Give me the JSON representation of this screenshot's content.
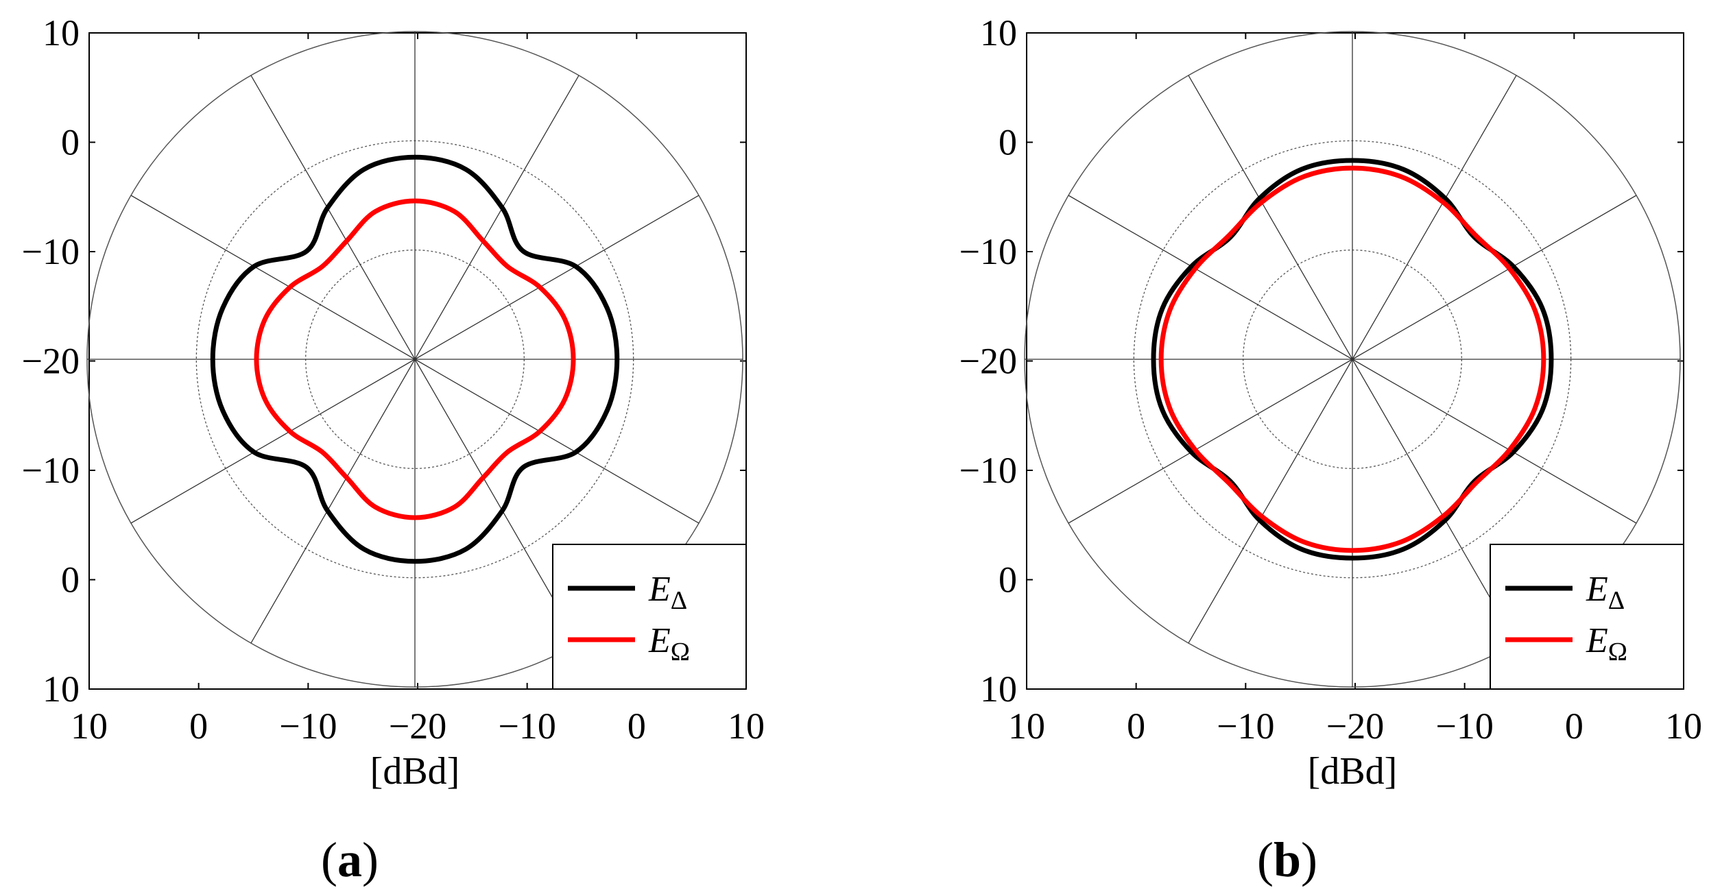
{
  "chart_data": [
    {
      "type": "polar",
      "panel_label": "a",
      "xlabel": "[dBd]",
      "ylabel": "",
      "r_range_dB": [
        -20,
        10
      ],
      "ring_values_dB": [
        -10,
        0,
        10
      ],
      "spoke_interval_deg": 30,
      "y_tick_labels": [
        "10",
        "0",
        "−10",
        "−20",
        "−10",
        "0",
        "10"
      ],
      "x_tick_labels": [
        "10",
        "0",
        "−10",
        "−20",
        "−10",
        "0",
        "10"
      ],
      "legend_position": "bottom-right",
      "angles_deg": [
        0,
        15,
        30,
        45,
        60,
        75,
        90,
        105,
        120,
        135,
        150,
        165,
        180,
        195,
        210,
        225,
        240,
        255,
        270,
        285,
        300,
        315,
        330,
        345
      ],
      "series": [
        {
          "name": "E",
          "subscript": "Δ",
          "color": "#000000",
          "values": [
            -1.5,
            -1.8,
            -3.0,
            -6.0,
            -4.0,
            -2.0,
            -1.5,
            -2.0,
            -4.0,
            -6.0,
            -3.0,
            -1.8,
            -1.5,
            -1.8,
            -3.0,
            -6.0,
            -4.0,
            -2.0,
            -1.5,
            -2.0,
            -4.0,
            -6.0,
            -3.0,
            -1.8
          ]
        },
        {
          "name": "E",
          "subscript": "Ω",
          "color": "#ff0000",
          "values": [
            -5.5,
            -5.8,
            -6.8,
            -8.0,
            -7.5,
            -6.0,
            -5.5,
            -6.0,
            -7.5,
            -8.0,
            -6.8,
            -5.8,
            -5.5,
            -5.8,
            -6.8,
            -8.0,
            -7.5,
            -6.0,
            -5.5,
            -6.0,
            -7.5,
            -8.0,
            -6.8,
            -5.8
          ]
        }
      ]
    },
    {
      "type": "polar",
      "panel_label": "b",
      "xlabel": "[dBd]",
      "ylabel": "",
      "r_range_dB": [
        -20,
        10
      ],
      "ring_values_dB": [
        -10,
        0,
        10
      ],
      "spoke_interval_deg": 30,
      "y_tick_labels": [
        "10",
        "0",
        "−10",
        "−20",
        "−10",
        "0",
        "10"
      ],
      "x_tick_labels": [
        "10",
        "0",
        "−10",
        "−20",
        "−10",
        "0",
        "10"
      ],
      "legend_position": "bottom-right",
      "angles_deg": [
        0,
        15,
        30,
        45,
        60,
        75,
        90,
        105,
        120,
        135,
        150,
        165,
        180,
        195,
        210,
        225,
        240,
        255,
        270,
        285,
        300,
        315,
        330,
        345
      ],
      "series": [
        {
          "name": "E",
          "subscript": "Δ",
          "color": "#000000",
          "values": [
            -1.8,
            -2.0,
            -3.0,
            -4.2,
            -3.0,
            -2.0,
            -1.8,
            -2.0,
            -3.0,
            -4.2,
            -3.0,
            -2.0,
            -1.8,
            -2.0,
            -3.0,
            -4.2,
            -3.0,
            -2.0,
            -1.8,
            -2.0,
            -3.0,
            -4.2,
            -3.0,
            -2.0
          ]
        },
        {
          "name": "E",
          "subscript": "Ω",
          "color": "#ff0000",
          "values": [
            -2.5,
            -2.7,
            -3.4,
            -4.0,
            -3.4,
            -2.7,
            -2.5,
            -2.7,
            -3.4,
            -4.0,
            -3.4,
            -2.7,
            -2.5,
            -2.7,
            -3.4,
            -4.0,
            -3.4,
            -2.7,
            -2.5,
            -2.7,
            -3.4,
            -4.0,
            -3.4,
            -2.7
          ]
        }
      ]
    }
  ]
}
